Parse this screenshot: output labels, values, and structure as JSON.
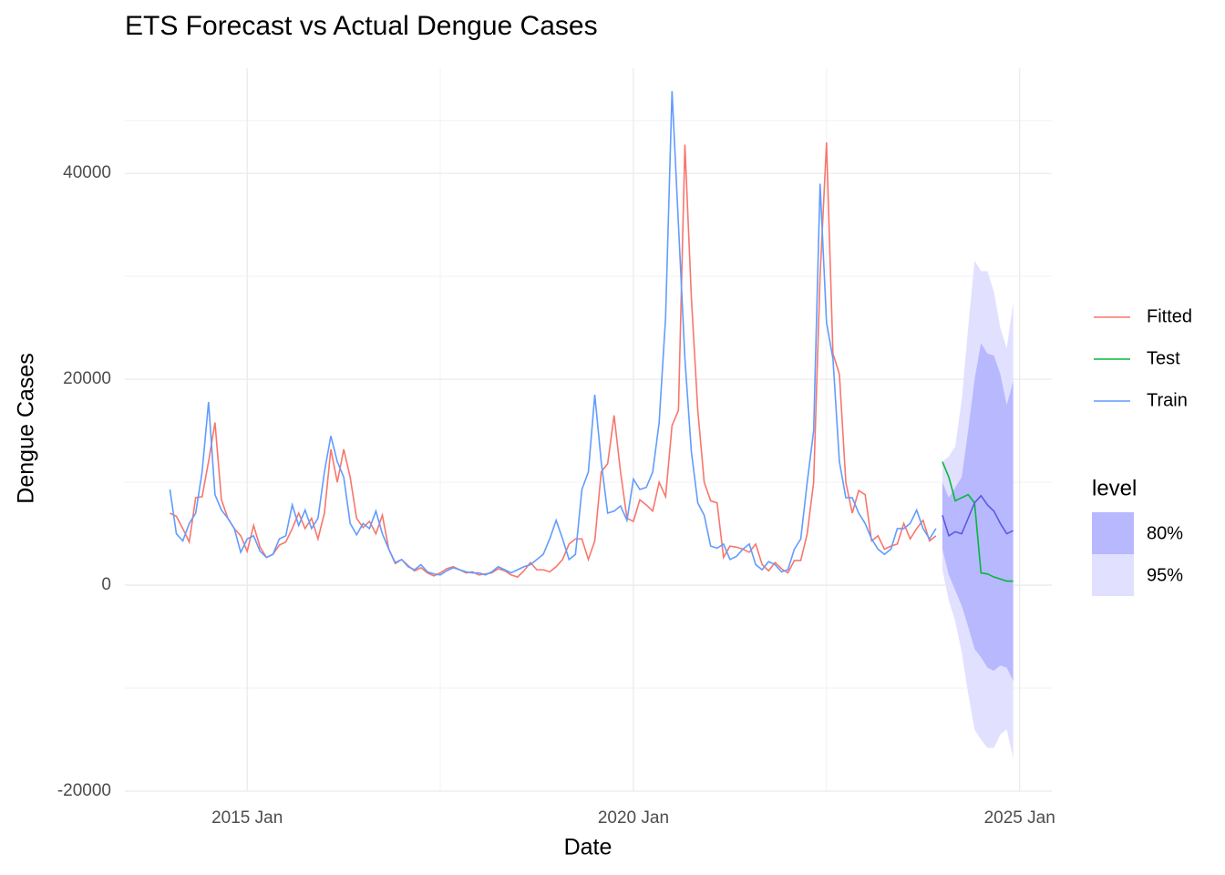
{
  "chart_data": {
    "type": "line",
    "title": "ETS Forecast vs Actual Dengue Cases",
    "x_label": "Date",
    "y_label": "Dengue Cases",
    "xlim": [
      "2013-06",
      "2025-06"
    ],
    "xticks": [
      {
        "value": "2015-01",
        "label": "2015 Jan"
      },
      {
        "value": "2020-01",
        "label": "2020 Jan"
      },
      {
        "value": "2025-01",
        "label": "2025 Jan"
      }
    ],
    "ylim": [
      -20000,
      50200
    ],
    "yticks": [
      -20000,
      0,
      20000,
      40000
    ],
    "grid": true,
    "legend_position": "right",
    "series": [
      {
        "name": "Fitted",
        "color": "#F8766D",
        "x": [
          "2014-01",
          "2014-02",
          "2014-03",
          "2014-04",
          "2014-05",
          "2014-06",
          "2014-07",
          "2014-08",
          "2014-09",
          "2014-10",
          "2014-11",
          "2014-12",
          "2015-01",
          "2015-02",
          "2015-03",
          "2015-04",
          "2015-05",
          "2015-06",
          "2015-07",
          "2015-08",
          "2015-09",
          "2015-10",
          "2015-11",
          "2015-12",
          "2016-01",
          "2016-02",
          "2016-03",
          "2016-04",
          "2016-05",
          "2016-06",
          "2016-07",
          "2016-08",
          "2016-09",
          "2016-10",
          "2016-11",
          "2016-12",
          "2017-01",
          "2017-02",
          "2017-03",
          "2017-04",
          "2017-05",
          "2017-06",
          "2017-07",
          "2017-08",
          "2017-09",
          "2017-10",
          "2017-11",
          "2017-12",
          "2018-01",
          "2018-02",
          "2018-03",
          "2018-04",
          "2018-05",
          "2018-06",
          "2018-07",
          "2018-08",
          "2018-09",
          "2018-10",
          "2018-11",
          "2018-12",
          "2019-01",
          "2019-02",
          "2019-03",
          "2019-04",
          "2019-05",
          "2019-06",
          "2019-07",
          "2019-08",
          "2019-09",
          "2019-10",
          "2019-11",
          "2019-12",
          "2020-01",
          "2020-02",
          "2020-03",
          "2020-04",
          "2020-05",
          "2020-06",
          "2020-07",
          "2020-08",
          "2020-09",
          "2020-10",
          "2020-11",
          "2020-12",
          "2021-01",
          "2021-02",
          "2021-03",
          "2021-04",
          "2021-05",
          "2021-06",
          "2021-07",
          "2021-08",
          "2021-09",
          "2021-10",
          "2021-11",
          "2021-12",
          "2022-01",
          "2022-02",
          "2022-03",
          "2022-04",
          "2022-05",
          "2022-06",
          "2022-07",
          "2022-08",
          "2022-09",
          "2022-10",
          "2022-11",
          "2022-12",
          "2023-01",
          "2023-02",
          "2023-03",
          "2023-04",
          "2023-05",
          "2023-06",
          "2023-07",
          "2023-08",
          "2023-09",
          "2023-10",
          "2023-11",
          "2023-12"
        ],
        "values": [
          7000,
          6700,
          5500,
          4200,
          8500,
          8600,
          12000,
          15800,
          8300,
          6500,
          5500,
          4800,
          3300,
          5800,
          3700,
          2700,
          3000,
          3900,
          4200,
          5500,
          7000,
          5500,
          6500,
          4500,
          7000,
          13200,
          10000,
          13200,
          10500,
          6500,
          5600,
          6200,
          5000,
          6800,
          3500,
          2100,
          2500,
          1900,
          1400,
          1700,
          1200,
          900,
          1200,
          1600,
          1800,
          1500,
          1200,
          1300,
          1000,
          1100,
          1200,
          1600,
          1400,
          1000,
          800,
          1400,
          2200,
          1500,
          1500,
          1300,
          1800,
          2500,
          4000,
          4500,
          4500,
          2500,
          4300,
          11000,
          11800,
          16500,
          11000,
          6500,
          6200,
          8300,
          7800,
          7200,
          10000,
          8600,
          15500,
          17000,
          42800,
          28000,
          17000,
          10000,
          8200,
          8000,
          2700,
          3800,
          3700,
          3500,
          3200,
          4000,
          2000,
          1400,
          2200,
          1600,
          1200,
          2400,
          2400,
          5000,
          10000,
          30000,
          43000,
          22500,
          20500,
          10000,
          7000,
          9200,
          8800,
          4300,
          4800,
          3500,
          3800,
          4000,
          6000,
          4500,
          5500,
          6300,
          4300,
          4800
        ]
      },
      {
        "name": "Test",
        "color": "#00BA38",
        "x": [
          "2024-01",
          "2024-02",
          "2024-03",
          "2024-04",
          "2024-05",
          "2024-06",
          "2024-07",
          "2024-08",
          "2024-09",
          "2024-10",
          "2024-11",
          "2024-12"
        ],
        "values": [
          12000,
          10500,
          8200,
          8500,
          8800,
          8000,
          1200,
          1100,
          800,
          600,
          400,
          400
        ]
      },
      {
        "name": "Train",
        "color": "#619CFF",
        "x": [
          "2014-01",
          "2014-02",
          "2014-03",
          "2014-04",
          "2014-05",
          "2014-06",
          "2014-07",
          "2014-08",
          "2014-09",
          "2014-10",
          "2014-11",
          "2014-12",
          "2015-01",
          "2015-02",
          "2015-03",
          "2015-04",
          "2015-05",
          "2015-06",
          "2015-07",
          "2015-08",
          "2015-09",
          "2015-10",
          "2015-11",
          "2015-12",
          "2016-01",
          "2016-02",
          "2016-03",
          "2016-04",
          "2016-05",
          "2016-06",
          "2016-07",
          "2016-08",
          "2016-09",
          "2016-10",
          "2016-11",
          "2016-12",
          "2017-01",
          "2017-02",
          "2017-03",
          "2017-04",
          "2017-05",
          "2017-06",
          "2017-07",
          "2017-08",
          "2017-09",
          "2017-10",
          "2017-11",
          "2017-12",
          "2018-01",
          "2018-02",
          "2018-03",
          "2018-04",
          "2018-05",
          "2018-06",
          "2018-07",
          "2018-08",
          "2018-09",
          "2018-10",
          "2018-11",
          "2018-12",
          "2019-01",
          "2019-02",
          "2019-03",
          "2019-04",
          "2019-05",
          "2019-06",
          "2019-07",
          "2019-08",
          "2019-09",
          "2019-10",
          "2019-11",
          "2019-12",
          "2020-01",
          "2020-02",
          "2020-03",
          "2020-04",
          "2020-05",
          "2020-06",
          "2020-07",
          "2020-08",
          "2020-09",
          "2020-10",
          "2020-11",
          "2020-12",
          "2021-01",
          "2021-02",
          "2021-03",
          "2021-04",
          "2021-05",
          "2021-06",
          "2021-07",
          "2021-08",
          "2021-09",
          "2021-10",
          "2021-11",
          "2021-12",
          "2022-01",
          "2022-02",
          "2022-03",
          "2022-04",
          "2022-05",
          "2022-06",
          "2022-07",
          "2022-08",
          "2022-09",
          "2022-10",
          "2022-11",
          "2022-12",
          "2023-01",
          "2023-02",
          "2023-03",
          "2023-04",
          "2023-05",
          "2023-06",
          "2023-07",
          "2023-08",
          "2023-09",
          "2023-10",
          "2023-11",
          "2023-12"
        ],
        "values": [
          9300,
          5000,
          4300,
          6000,
          7000,
          11000,
          17800,
          8800,
          7300,
          6500,
          5500,
          3200,
          4500,
          4800,
          3300,
          2700,
          3000,
          4500,
          4800,
          7800,
          5800,
          7300,
          5500,
          6500,
          11000,
          14500,
          12000,
          10500,
          6000,
          4900,
          6000,
          5500,
          7200,
          5000,
          3500,
          2200,
          2500,
          1800,
          1500,
          2000,
          1300,
          1100,
          1000,
          1400,
          1700,
          1500,
          1300,
          1200,
          1200,
          1000,
          1300,
          1800,
          1500,
          1200,
          1500,
          1800,
          2000,
          2500,
          3000,
          4500,
          6300,
          4500,
          2500,
          3000,
          9300,
          11000,
          18500,
          12000,
          7000,
          7200,
          7700,
          6300,
          10300,
          9300,
          9500,
          11000,
          15800,
          26000,
          48000,
          35000,
          22000,
          13000,
          8000,
          6800,
          3800,
          3600,
          4000,
          2500,
          2800,
          3500,
          4000,
          2000,
          1500,
          2300,
          2000,
          1300,
          1500,
          3500,
          4500,
          10000,
          15000,
          39000,
          25500,
          22000,
          12000,
          8500,
          8500,
          7000,
          6000,
          4500,
          3500,
          3000,
          3500,
          5500,
          5500,
          6000,
          7300,
          5500,
          4500,
          5500
        ]
      }
    ],
    "forecast": {
      "color": "#5a5ae6",
      "x": [
        "2024-01",
        "2024-02",
        "2024-03",
        "2024-04",
        "2024-05",
        "2024-06",
        "2024-07",
        "2024-08",
        "2024-09",
        "2024-10",
        "2024-11",
        "2024-12"
      ],
      "values": [
        6800,
        4800,
        5200,
        5000,
        6500,
        8000,
        8700,
        7800,
        7200,
        6000,
        5000,
        5300
      ],
      "lo80": [
        3500,
        1000,
        -500,
        -2000,
        -4000,
        -6200,
        -7000,
        -8000,
        -8300,
        -7800,
        -8000,
        -9300
      ],
      "hi80": [
        10000,
        8500,
        9500,
        10500,
        15000,
        20000,
        23500,
        22500,
        22300,
        20500,
        17500,
        19800
      ],
      "lo95": [
        1500,
        -1500,
        -3500,
        -6500,
        -10500,
        -14000,
        -15000,
        -15800,
        -15800,
        -14500,
        -14000,
        -16800
      ],
      "hi95": [
        12000,
        12500,
        13500,
        18000,
        25000,
        31500,
        30500,
        30500,
        28500,
        25000,
        23000,
        27500
      ]
    },
    "level_legend": {
      "title": "level",
      "entries": [
        {
          "label": "80%",
          "color": "#b8b8ff"
        },
        {
          "label": "95%",
          "color": "#e2e0ff"
        }
      ]
    }
  }
}
